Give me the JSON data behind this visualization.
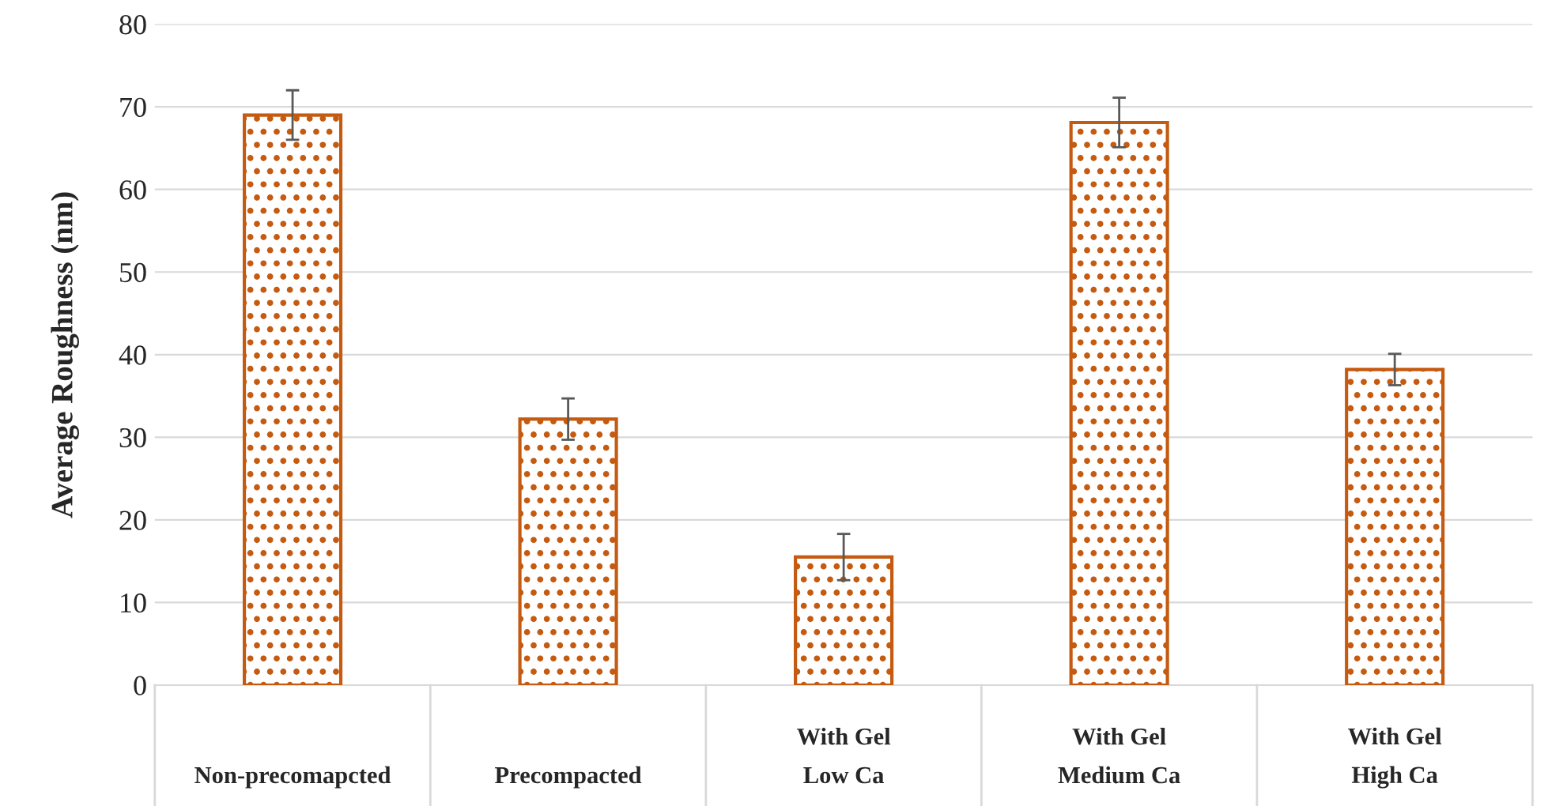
{
  "chart_data": {
    "type": "bar",
    "ylabel": "Average Roughness (nm)",
    "categories": [
      "Non-precomapcted",
      "Precompacted",
      "With Gel\nLow Ca",
      "With Gel\nMedium Ca",
      "With Gel\nHigh Ca"
    ],
    "values": [
      69,
      32.2,
      15.5,
      68.1,
      38.2
    ],
    "errors": [
      3,
      2.5,
      2.8,
      3,
      1.9
    ],
    "color": "#c55a11",
    "ylim": [
      0,
      80
    ],
    "yticks": [
      0,
      10,
      20,
      30,
      40,
      50,
      60,
      70,
      80
    ],
    "grid": "y",
    "legend": false
  }
}
